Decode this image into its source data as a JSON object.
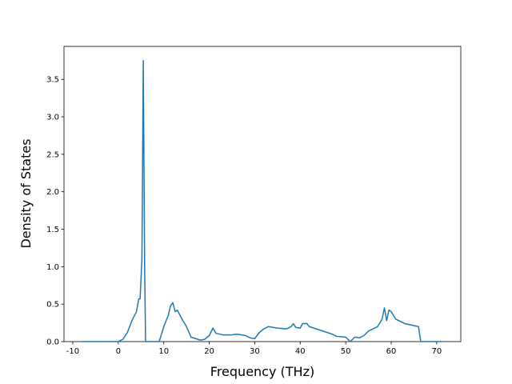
{
  "chart_data": {
    "type": "line",
    "xlabel": "Frequency (THz)",
    "ylabel": "Density of States",
    "x": [
      -8,
      0,
      1,
      2,
      3,
      4,
      4.5,
      4.8,
      5.2,
      5.5,
      5.8,
      6.0,
      9,
      10,
      11,
      11.5,
      12,
      12.5,
      13,
      14,
      15,
      16,
      17,
      18,
      19,
      20,
      20.8,
      21.5,
      23,
      25,
      26,
      28,
      29,
      30,
      31,
      32,
      33,
      35,
      37,
      38,
      38.5,
      39,
      40,
      40.5,
      41.5,
      42,
      43,
      45,
      47,
      48,
      50,
      51,
      52,
      53,
      54,
      55,
      57,
      58,
      58.5,
      59,
      59.5,
      60,
      61,
      63,
      66,
      66.5,
      71.2
    ],
    "series": [
      {
        "name": "DOS",
        "color": "#1f77b4",
        "values": [
          0,
          0,
          0.03,
          0.12,
          0.28,
          0.4,
          0.57,
          0.57,
          1.1,
          3.75,
          1.0,
          0,
          0,
          0.2,
          0.35,
          0.48,
          0.52,
          0.4,
          0.42,
          0.3,
          0.2,
          0.06,
          0.04,
          0.02,
          0.03,
          0.08,
          0.18,
          0.11,
          0.09,
          0.09,
          0.1,
          0.08,
          0.05,
          0.04,
          0.12,
          0.17,
          0.2,
          0.18,
          0.17,
          0.2,
          0.24,
          0.19,
          0.18,
          0.24,
          0.24,
          0.2,
          0.18,
          0.14,
          0.1,
          0.07,
          0.06,
          0,
          0.06,
          0.05,
          0.08,
          0.14,
          0.2,
          0.3,
          0.45,
          0.28,
          0.42,
          0.4,
          0.3,
          0.24,
          0.2,
          0,
          0
        ]
      }
    ],
    "xlim": [
      -11.93,
      75.3
    ],
    "ylim": [
      0,
      3.94
    ],
    "xticks": [
      -10,
      0,
      10,
      20,
      30,
      40,
      50,
      60,
      70
    ],
    "yticks": [
      {
        "value": 0,
        "label": "0.0"
      },
      0.5,
      {
        "value": 1,
        "label": "1.0"
      },
      1.5,
      {
        "value": 2,
        "label": "2.0"
      },
      2.5,
      {
        "value": 3,
        "label": "3.0"
      },
      3.5
    ],
    "grid": false
  }
}
